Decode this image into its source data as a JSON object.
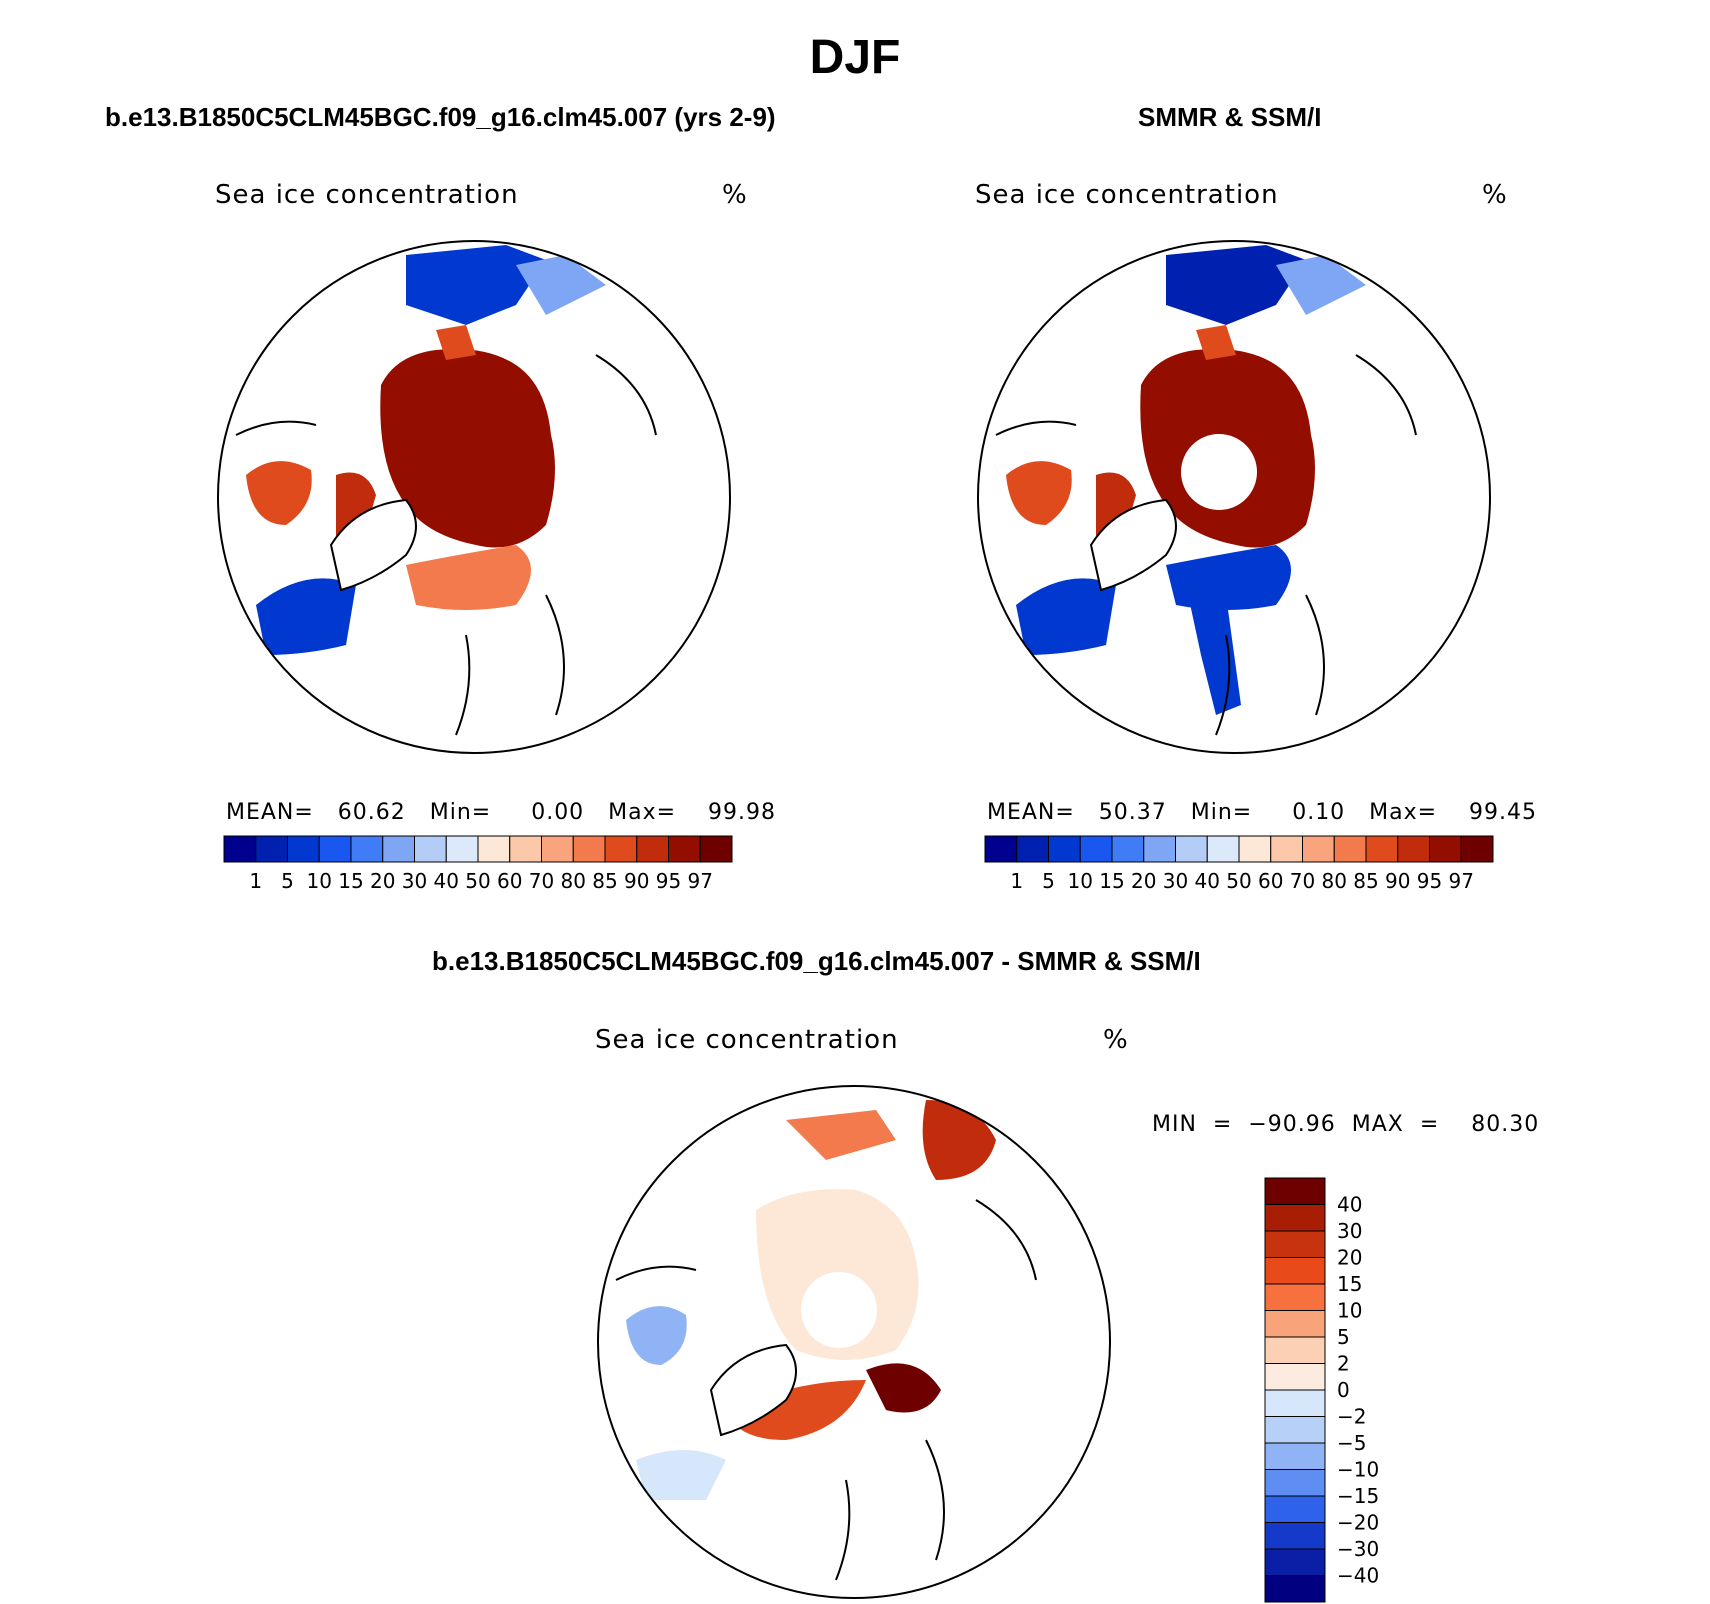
{
  "figure_title": "DJF",
  "panels": [
    {
      "title": "b.e13.B1850C5CLM45BGC.f09_g16.clm45.007 (yrs 2-9)",
      "variable": "Sea ice concentration",
      "units": "%",
      "stats_text": "MEAN=   60.62   Min=     0.00   Max=    99.98"
    },
    {
      "title": "SMMR & SSM/I",
      "variable": "Sea ice concentration",
      "units": "%",
      "stats_text": "MEAN=   50.37   Min=     0.10   Max=    99.45"
    },
    {
      "title": "b.e13.B1850C5CLM45BGC.f09_g16.clm45.007 - SMMR & SSM/I",
      "variable": "Sea ice concentration",
      "units": "%",
      "stats_text": "MIN  =  −90.96  MAX  =    80.30"
    }
  ],
  "chart_data": [
    {
      "type": "heatmap",
      "projection": "north polar stereographic",
      "title": "b.e13.B1850C5CLM45BGC.f09_g16.clm45.007 (yrs 2-9)",
      "variable": "Sea ice concentration",
      "units": "%",
      "mean": 60.62,
      "min": 0.0,
      "max": 99.98,
      "colorbar": {
        "orientation": "horizontal",
        "levels": [
          "1",
          "5",
          "10",
          "15",
          "20",
          "30",
          "40",
          "50",
          "60",
          "70",
          "80",
          "85",
          "90",
          "95",
          "97"
        ],
        "colors": [
          "#00008f",
          "#0020b0",
          "#0038d0",
          "#1a56f0",
          "#3f7cf5",
          "#7ea6f5",
          "#b3cdf7",
          "#dce9fb",
          "#fde8d8",
          "#fbc9a9",
          "#f9a47c",
          "#f37a4c",
          "#e04b1e",
          "#c02c0c",
          "#940e00",
          "#6e0000"
        ]
      }
    },
    {
      "type": "heatmap",
      "projection": "north polar stereographic",
      "title": "SMMR & SSM/I",
      "variable": "Sea ice concentration",
      "units": "%",
      "mean": 50.37,
      "min": 0.1,
      "max": 99.45,
      "colorbar": {
        "orientation": "horizontal",
        "levels": [
          "1",
          "5",
          "10",
          "15",
          "20",
          "30",
          "40",
          "50",
          "60",
          "70",
          "80",
          "85",
          "90",
          "95",
          "97"
        ],
        "colors": [
          "#00008f",
          "#0020b0",
          "#0038d0",
          "#1a56f0",
          "#3f7cf5",
          "#7ea6f5",
          "#b3cdf7",
          "#dce9fb",
          "#fde8d8",
          "#fbc9a9",
          "#f9a47c",
          "#f37a4c",
          "#e04b1e",
          "#c02c0c",
          "#940e00",
          "#6e0000"
        ]
      }
    },
    {
      "type": "heatmap",
      "projection": "north polar stereographic",
      "title": "b.e13.B1850C5CLM45BGC.f09_g16.clm45.007 - SMMR & SSM/I",
      "variable": "Sea ice concentration",
      "units": "%",
      "min": -90.96,
      "max": 80.3,
      "colorbar": {
        "orientation": "vertical",
        "levels": [
          "40",
          "30",
          "20",
          "15",
          "10",
          "5",
          "2",
          "0",
          "−2",
          "−5",
          "−10",
          "−15",
          "−20",
          "−30",
          "−40"
        ],
        "colors": [
          "#6e0000",
          "#a81e05",
          "#c8330f",
          "#e84a1a",
          "#f7713f",
          "#f9a37a",
          "#fcd0b4",
          "#fdebe0",
          "#d6e7fb",
          "#b7d0f7",
          "#8fb3f4",
          "#5f8ef2",
          "#2f62ea",
          "#1539c8",
          "#0a1fa6",
          "#000080"
        ]
      }
    }
  ]
}
